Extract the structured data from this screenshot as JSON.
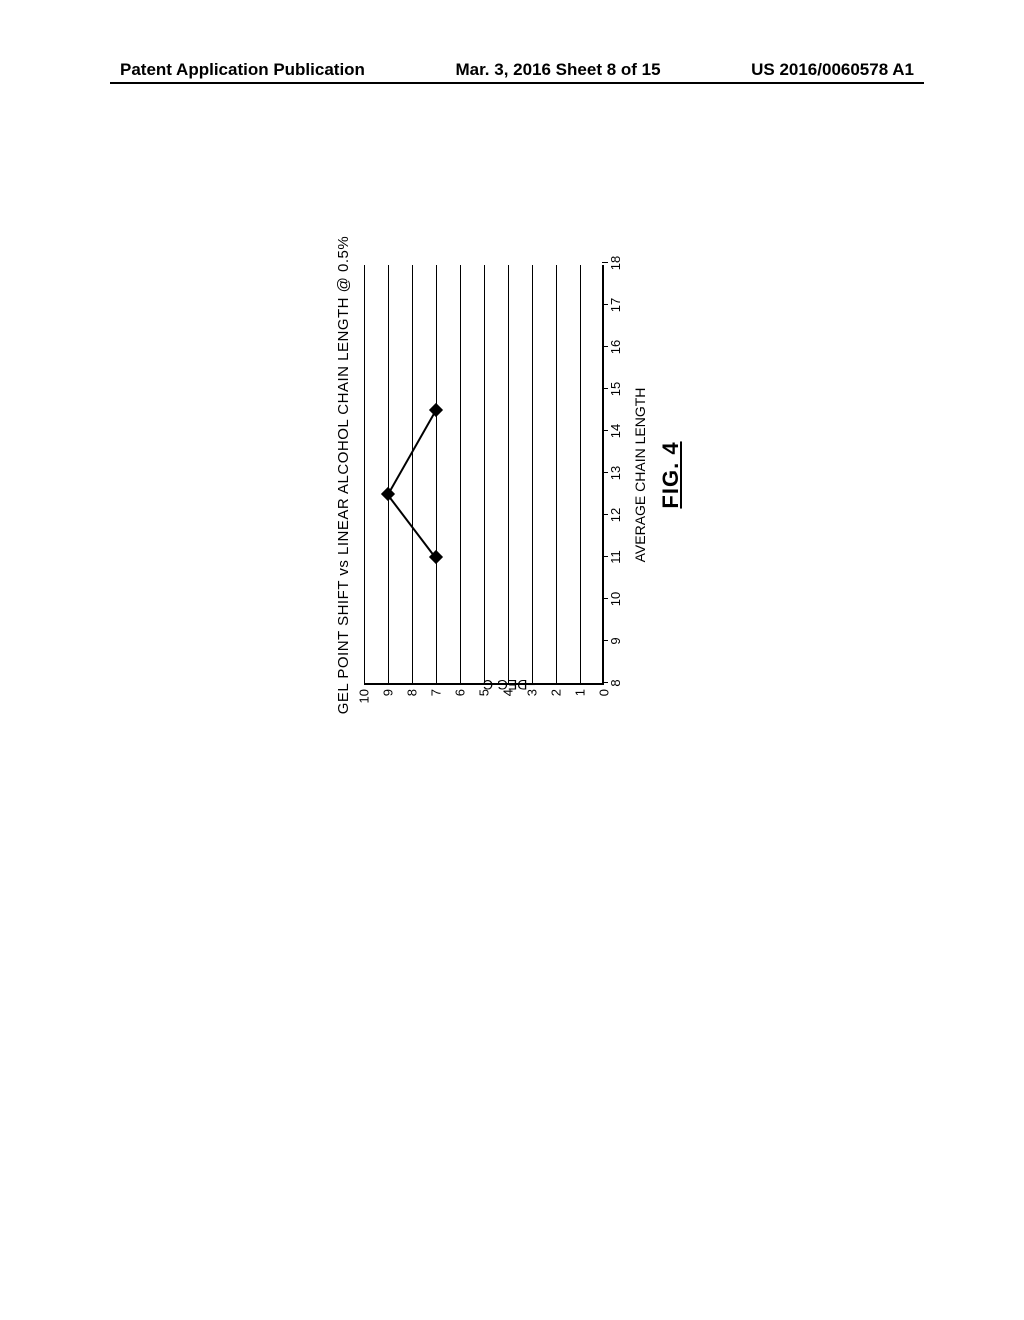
{
  "header": {
    "left": "Patent Application Publication",
    "center": "Mar. 3, 2016  Sheet 8 of 15",
    "right": "US 2016/0060578 A1"
  },
  "chart": {
    "type": "line",
    "title": "GEL POINT SHIFT vs LINEAR ALCOHOL CHAIN LENGTH @ 0.5%",
    "xlabel": "AVERAGE CHAIN LENGTH",
    "ylabel": "−DEG C",
    "xlim": [
      8,
      18
    ],
    "ylim": [
      0,
      10
    ],
    "xticks": [
      8,
      9,
      10,
      11,
      12,
      13,
      14,
      15,
      16,
      17,
      18
    ],
    "yticks": [
      0,
      1,
      2,
      3,
      4,
      5,
      6,
      7,
      8,
      9,
      10
    ],
    "grid_color": "#000000",
    "line_color": "#000000",
    "line_width": 2,
    "marker_style": "diamond",
    "marker_size": 10,
    "marker_color": "#000000",
    "background_color": "#ffffff",
    "title_fontsize": 15,
    "label_fontsize": 14,
    "tick_fontsize": 13,
    "points": [
      {
        "x": 11,
        "y": 7
      },
      {
        "x": 12.5,
        "y": 9
      },
      {
        "x": 14.5,
        "y": 7
      }
    ]
  },
  "figure_caption": "FIG. 4"
}
